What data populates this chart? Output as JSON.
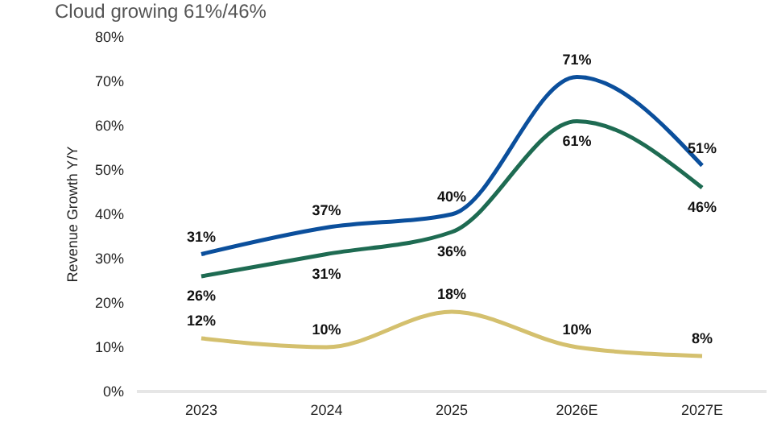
{
  "chart_data": {
    "type": "line",
    "title": "Cloud growing 61%/46%",
    "ylabel": "Revenue Growth Y/Y",
    "categories": [
      "2023",
      "2024",
      "2025",
      "2026E",
      "2027E"
    ],
    "series": [
      {
        "color": "#0b4f9c",
        "values": [
          31,
          37,
          40,
          71,
          51
        ],
        "value_labels": [
          "31%",
          "37%",
          "40%",
          "71%",
          "51%"
        ]
      },
      {
        "color": "#1e6b52",
        "values": [
          26,
          31,
          36,
          61,
          46
        ],
        "value_labels": [
          "26%",
          "31%",
          "36%",
          "61%",
          "46%"
        ]
      },
      {
        "color": "#d4c06e",
        "values": [
          12,
          10,
          18,
          10,
          8
        ],
        "value_labels": [
          "12%",
          "10%",
          "18%",
          "10%",
          "8%"
        ]
      }
    ],
    "ylim": [
      0,
      80
    ],
    "yticks": [
      {
        "value": 0,
        "label": "0%"
      },
      {
        "value": 10,
        "label": "10%"
      },
      {
        "value": 20,
        "label": "20%"
      },
      {
        "value": 30,
        "label": "30%"
      },
      {
        "value": 40,
        "label": "40%"
      },
      {
        "value": 50,
        "label": "50%"
      },
      {
        "value": 60,
        "label": "60%"
      },
      {
        "value": 70,
        "label": "70%"
      },
      {
        "value": 80,
        "label": "80%"
      }
    ],
    "grid": false,
    "marker": "none",
    "line_style": "solid"
  }
}
